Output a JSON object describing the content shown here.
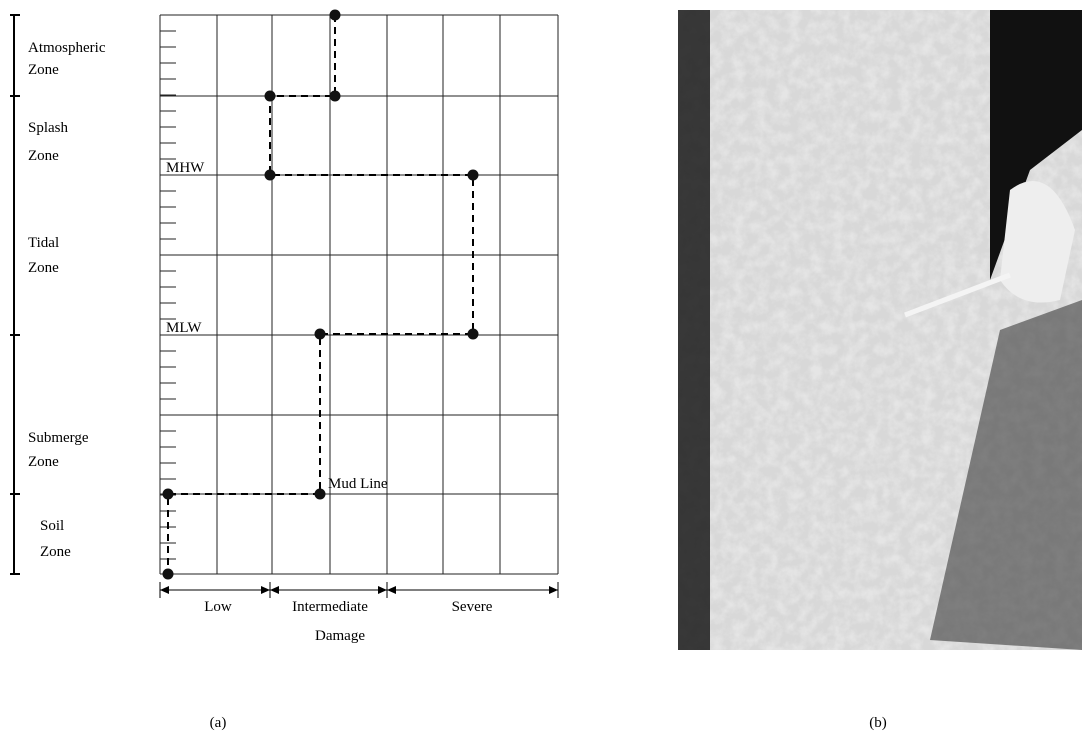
{
  "zones": [
    [
      "Atmospheric",
      "Zone"
    ],
    [
      "Splash",
      "Zone"
    ],
    [
      "Tidal",
      "Zone"
    ],
    [
      "Submerge",
      "Zone"
    ],
    [
      "Soil",
      "Zone"
    ]
  ],
  "levels": [
    "MHW",
    "MLW",
    "Mud Line"
  ],
  "damage_axis": {
    "categories": [
      "Low",
      "Intermediate",
      "Severe"
    ],
    "title": "Damage"
  },
  "panels": [
    "(a)",
    "(b)"
  ]
}
